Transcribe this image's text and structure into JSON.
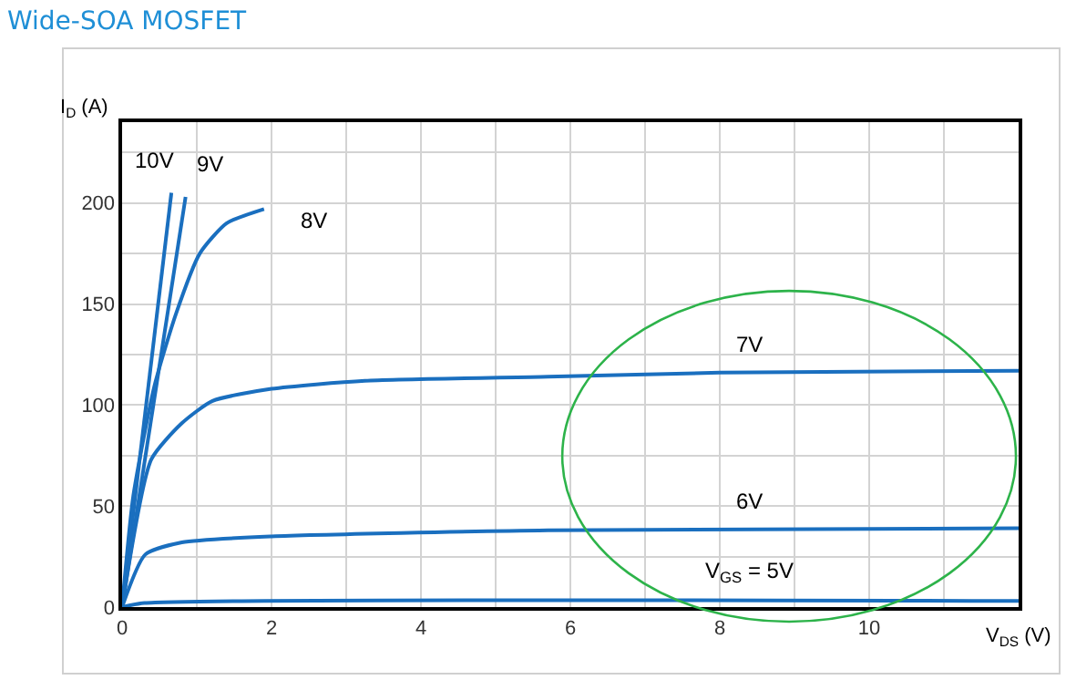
{
  "chart_data": {
    "type": "line",
    "title": "Wide-SOA MOSFET",
    "xlabel": "V$_{DS}$ (V)",
    "ylabel": "I$_{D}$ (A)",
    "xlim": [
      0,
      12
    ],
    "xticks": [
      0,
      {
        "value": 1,
        "label": null
      },
      2,
      {
        "value": 3,
        "label": null
      },
      4,
      {
        "value": 5,
        "label": null
      },
      6,
      {
        "value": 7,
        "label": null
      },
      8,
      {
        "value": 9,
        "label": null
      },
      10,
      {
        "value": 11,
        "label": null
      },
      {
        "value": 12,
        "label": null
      }
    ],
    "ylim": [
      0,
      240
    ],
    "yticks": [
      0,
      {
        "value": 25,
        "label": null
      },
      50,
      {
        "value": 75,
        "label": null
      },
      100,
      {
        "value": 125,
        "label": null
      },
      150,
      {
        "value": 175,
        "label": null
      },
      200,
      {
        "value": 225,
        "label": null
      },
      {
        "value": 240,
        "label": null
      }
    ],
    "grid": true,
    "legend": false,
    "marker": "none",
    "line_style": "solid",
    "series": [
      {
        "name": "10V",
        "color": "#1a6fbf",
        "x": [
          0,
          0.66
        ],
        "values": [
          0,
          205
        ]
      },
      {
        "name": "9V",
        "color": "#1a6fbf",
        "x": [
          0,
          0.85
        ],
        "values": [
          0,
          203
        ]
      },
      {
        "name": "8V",
        "color": "#1a6fbf",
        "x": [
          0,
          0.15,
          0.43,
          0.72,
          1.04,
          1.4,
          1.9
        ],
        "values": [
          0,
          55,
          109,
          145,
          175,
          190,
          197
        ]
      },
      {
        "name": "7V",
        "color": "#1a6fbf",
        "x": [
          0,
          0.39,
          0.8,
          1.21,
          2,
          3.25,
          5.7,
          8,
          12
        ],
        "values": [
          0,
          73,
          91,
          102,
          108,
          112,
          114,
          116,
          117
        ]
      },
      {
        "name": "6V",
        "color": "#1a6fbf",
        "x": [
          0,
          0.31,
          0.8,
          2,
          5.7,
          12
        ],
        "values": [
          0,
          26,
          32,
          35,
          38,
          39
        ]
      },
      {
        "name": "V$_{GS}$ = 5V",
        "color": "#1a6fbf",
        "x": [
          0,
          0.3,
          12
        ],
        "values": [
          0,
          2,
          3
        ]
      }
    ]
  }
}
